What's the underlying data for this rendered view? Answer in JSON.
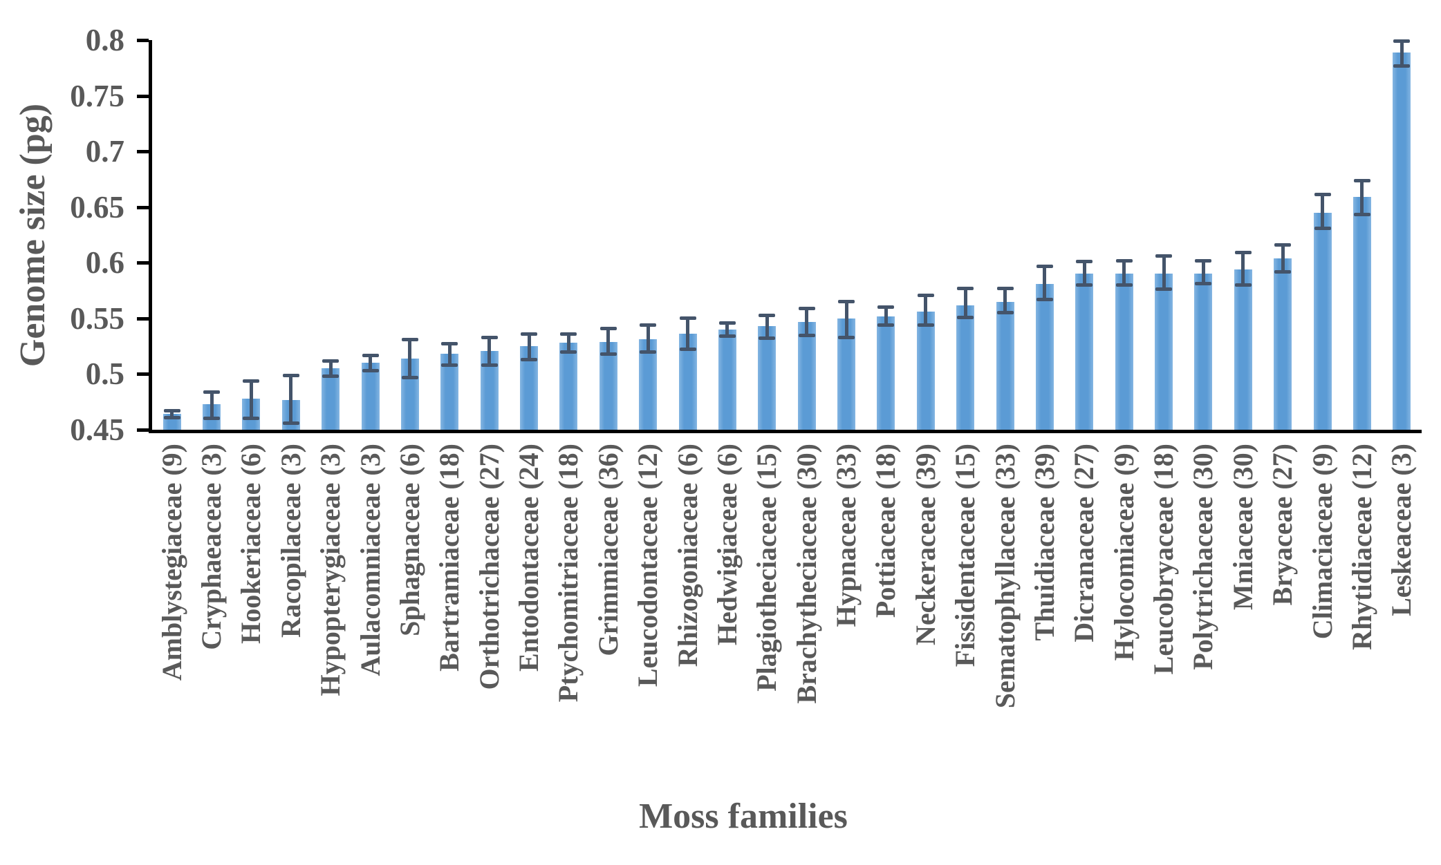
{
  "chart_data": {
    "type": "bar",
    "title": "",
    "xlabel": "Moss families",
    "ylabel": "Genome size (pg)",
    "ylim": [
      0.45,
      0.8
    ],
    "ytick_step": 0.05,
    "ytick_labels": [
      "0.45",
      "0.5",
      "0.55",
      "0.6",
      "0.65",
      "0.7",
      "0.75",
      "0.8"
    ],
    "grid": false,
    "legend_position": "none",
    "bar_color": "#5B9BD5",
    "error_bar_color": "#44546A",
    "axis_color": "#000000",
    "text_color": "#595959",
    "error_bars": "plus-minus caps",
    "categories": [
      "Amblystegiaceae (9)",
      "Cryphaeaceae (3)",
      "Hookeriaceae (6)",
      "Racopilaceae (3)",
      "Hypopterygiaceae (3)",
      "Aulacomniaceae (3)",
      "Sphagnaceae (6)",
      "Bartramiaceae (18)",
      "Orthotrichaceae (27)",
      "Entodontaceae (24)",
      "Ptychomitriaceae (18)",
      "Grimmiaceae (36)",
      "Leucodontaceae (12)",
      "Rhizogoniaceae (6)",
      "Hedwigiaceae (6)",
      "Plagiotheciaceae (15)",
      "Brachytheciaceae (30)",
      "Hypnaceae (33)",
      "Pottiaceae (18)",
      "Neckeraceae (39)",
      "Fissidentaceae (15)",
      "Sematophyllaceae (33)",
      "Thuidiaceae (39)",
      "Dicranaceae (27)",
      "Hylocomiaceae (9)",
      "Leucobryaceae (18)",
      "Polytrichaceae (30)",
      "Mniaceae (30)",
      "Bryaceae (27)",
      "Climaciaceae (9)",
      "Rhytidiaceae (12)",
      "Leskeaceae (3)"
    ],
    "sample_sizes": [
      9,
      3,
      6,
      3,
      3,
      3,
      6,
      18,
      27,
      24,
      18,
      36,
      12,
      6,
      6,
      15,
      30,
      33,
      18,
      39,
      15,
      33,
      39,
      27,
      9,
      18,
      30,
      30,
      27,
      9,
      12,
      3
    ],
    "values": [
      0.464,
      0.473,
      0.478,
      0.477,
      0.505,
      0.51,
      0.514,
      0.518,
      0.521,
      0.525,
      0.528,
      0.529,
      0.531,
      0.536,
      0.54,
      0.543,
      0.547,
      0.55,
      0.552,
      0.556,
      0.562,
      0.565,
      0.581,
      0.59,
      0.59,
      0.59,
      0.59,
      0.594,
      0.604,
      0.645,
      0.659,
      0.789
    ],
    "error_low": [
      0.461,
      0.46,
      0.46,
      0.456,
      0.498,
      0.503,
      0.497,
      0.508,
      0.508,
      0.513,
      0.52,
      0.518,
      0.52,
      0.522,
      0.534,
      0.532,
      0.535,
      0.533,
      0.544,
      0.544,
      0.551,
      0.555,
      0.567,
      0.58,
      0.58,
      0.576,
      0.581,
      0.58,
      0.592,
      0.631,
      0.643,
      0.777
    ],
    "error_high": [
      0.467,
      0.484,
      0.494,
      0.499,
      0.512,
      0.517,
      0.531,
      0.527,
      0.533,
      0.536,
      0.536,
      0.541,
      0.544,
      0.55,
      0.546,
      0.553,
      0.559,
      0.565,
      0.56,
      0.571,
      0.577,
      0.577,
      0.597,
      0.601,
      0.602,
      0.606,
      0.602,
      0.609,
      0.616,
      0.661,
      0.674,
      0.799
    ]
  }
}
